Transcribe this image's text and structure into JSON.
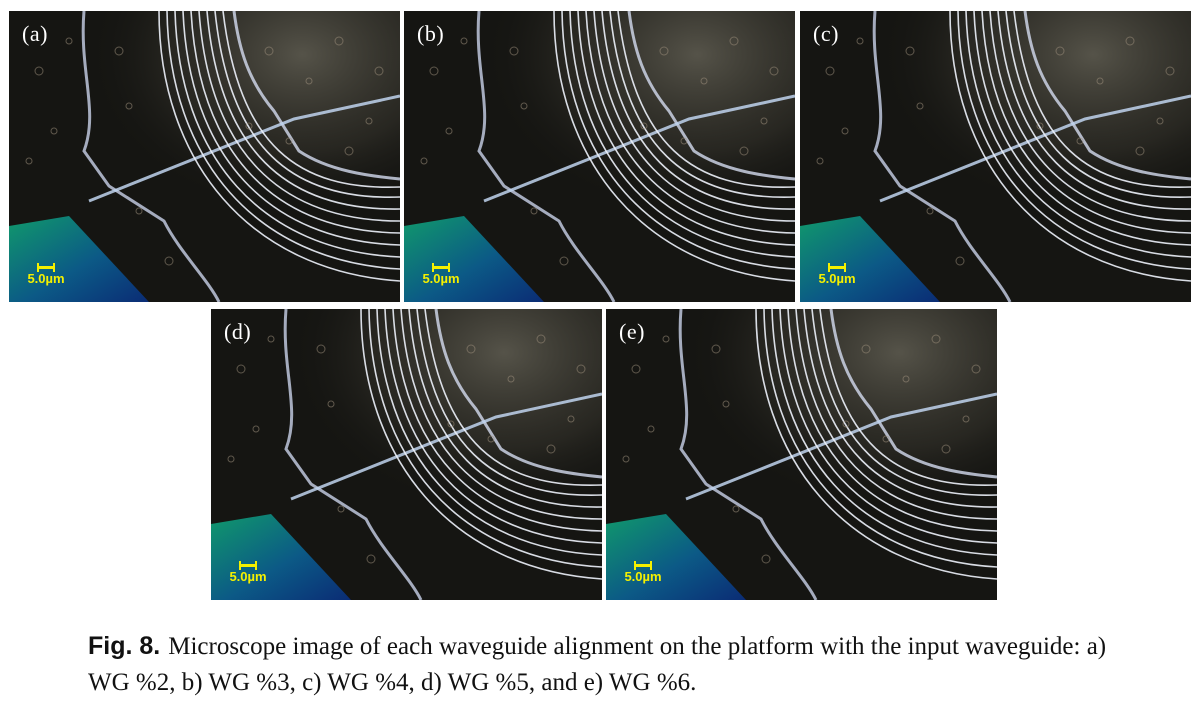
{
  "panels": [
    {
      "label": "(a)",
      "scale": "5.0µm"
    },
    {
      "label": "(b)",
      "scale": "5.0µm"
    },
    {
      "label": "(c)",
      "scale": "5.0µm"
    },
    {
      "label": "(d)",
      "scale": "5.0µm"
    },
    {
      "label": "(e)",
      "scale": "5.0µm"
    }
  ],
  "caption": {
    "fig_label": "Fig. 8.",
    "text": "Microscope image of each waveguide alignment on the platform with the input waveguide: a) WG %2, b) WG %3, c) WG %4, d) WG %5, and e) WG %6."
  },
  "colors": {
    "background": "#151512",
    "waveguide": "#e8eef8",
    "substrate": "#0a7a6a",
    "scale": "#f4f000"
  }
}
